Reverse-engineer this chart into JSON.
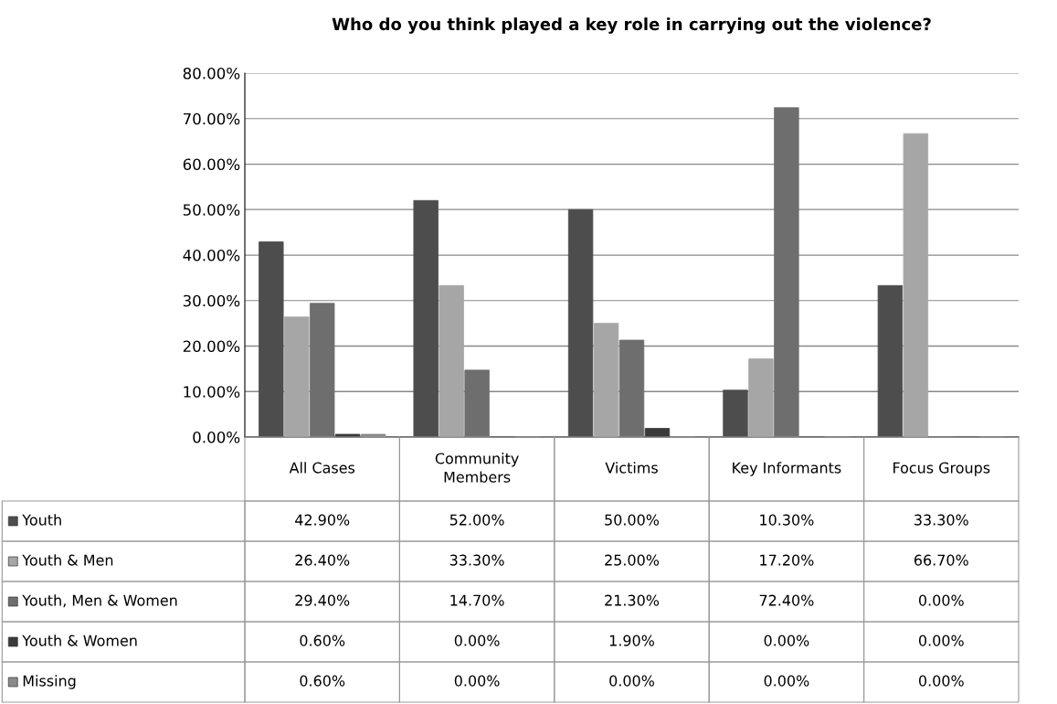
{
  "chart_data": {
    "type": "bar",
    "title": "Who do you think played a key role in carrying out the violence?",
    "categories": [
      "All Cases",
      "Community\nMembers",
      "Victims",
      "Key Informants",
      "Focus Groups"
    ],
    "series": [
      {
        "name": "Youth",
        "color": "#4d4d4d",
        "values": [
          42.9,
          52.0,
          50.0,
          10.3,
          33.3
        ],
        "value_labels": [
          "42.90%",
          "52.00%",
          "50.00%",
          "10.30%",
          "33.30%"
        ]
      },
      {
        "name": "Youth & Men",
        "color": "#a6a6a6",
        "values": [
          26.4,
          33.3,
          25.0,
          17.2,
          66.7
        ],
        "value_labels": [
          "26.40%",
          "33.30%",
          "25.00%",
          "17.20%",
          "66.70%"
        ]
      },
      {
        "name": "Youth, Men & Women",
        "color": "#6e6e6e",
        "values": [
          29.4,
          14.7,
          21.3,
          72.4,
          0.0
        ],
        "value_labels": [
          "29.40%",
          "14.70%",
          "21.30%",
          "72.40%",
          "0.00%"
        ]
      },
      {
        "name": "Youth & Women",
        "color": "#3a3a3a",
        "values": [
          0.6,
          0.0,
          1.9,
          0.0,
          0.0
        ],
        "value_labels": [
          "0.60%",
          "0.00%",
          "1.90%",
          "0.00%",
          "0.00%"
        ]
      },
      {
        "name": "Missing",
        "color": "#8a8a8a",
        "values": [
          0.6,
          0.0,
          0.0,
          0.0,
          0.0
        ],
        "value_labels": [
          "0.60%",
          "0.00%",
          "0.00%",
          "0.00%",
          "0.00%"
        ]
      }
    ],
    "ylim": [
      0,
      80
    ],
    "yticks": [
      {
        "value": 0,
        "label": "0.00%"
      },
      {
        "value": 10,
        "label": "10.00%"
      },
      {
        "value": 20,
        "label": "20.00%"
      },
      {
        "value": 30,
        "label": "30.00%"
      },
      {
        "value": 40,
        "label": "40.00%"
      },
      {
        "value": 50,
        "label": "50.00%"
      },
      {
        "value": 60,
        "label": "60.00%"
      },
      {
        "value": 70,
        "label": "70.00%"
      },
      {
        "value": 80,
        "label": "80.00%"
      }
    ],
    "grid": "y",
    "legend": "bottom"
  }
}
